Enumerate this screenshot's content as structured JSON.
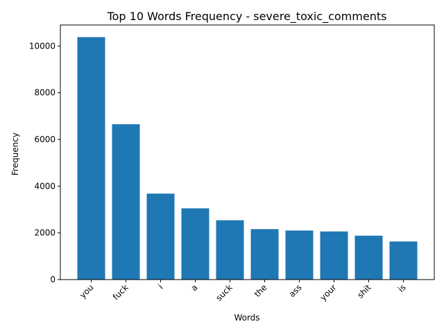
{
  "chart_data": {
    "type": "bar",
    "title": "Top 10 Words Frequency - severe_toxic_comments",
    "xlabel": "Words",
    "ylabel": "Frequency",
    "categories": [
      "you",
      "fuck",
      "i",
      "a",
      "suck",
      "the",
      "ass",
      "your",
      "shit",
      "is"
    ],
    "values": [
      10380,
      6650,
      3680,
      3050,
      2540,
      2160,
      2100,
      2060,
      1880,
      1630
    ],
    "ylim": [
      0,
      10900
    ],
    "yticks": [
      0,
      2000,
      4000,
      6000,
      8000,
      10000
    ],
    "ytick_labels": [
      "0",
      "2000",
      "4000",
      "6000",
      "8000",
      "10000"
    ],
    "xtick_rotation": 45,
    "grid": false,
    "legend": "none",
    "bar_color": "#1f77b4"
  }
}
